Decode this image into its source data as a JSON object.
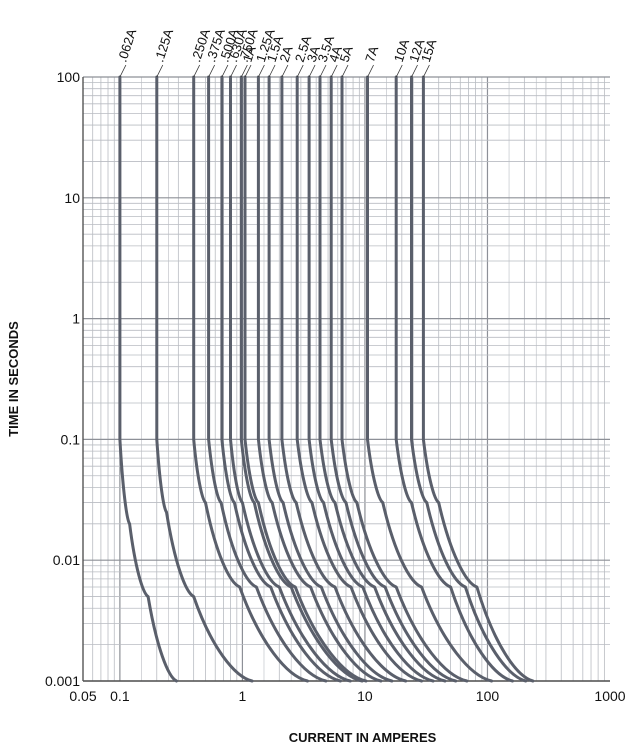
{
  "chart_data": {
    "type": "line",
    "title": "",
    "xlabel": "CURRENT IN AMPERES",
    "ylabel": "TIME IN SECONDS",
    "xscale": "log",
    "yscale": "log",
    "xlim": [
      0.05,
      1000
    ],
    "ylim": [
      0.001,
      100
    ],
    "grid": true,
    "x_tick_labels": [
      "0.05",
      "0.1",
      "1",
      "10",
      "100",
      "1000"
    ],
    "x_tick_values": [
      0.05,
      0.1,
      1,
      10,
      100,
      1000
    ],
    "y_tick_labels": [
      "0.001",
      "0.01",
      "0.1",
      "1",
      "10",
      "100"
    ],
    "y_tick_values": [
      0.001,
      0.01,
      0.1,
      1,
      10,
      100
    ],
    "series_color": "#5a5f6b",
    "series": [
      {
        "name": ".062A",
        "points": [
          [
            0.1,
            100
          ],
          [
            0.1,
            0.1
          ],
          [
            0.12,
            0.02
          ],
          [
            0.17,
            0.005
          ],
          [
            0.29,
            0.001
          ]
        ]
      },
      {
        "name": ".125A",
        "points": [
          [
            0.2,
            100
          ],
          [
            0.2,
            0.1
          ],
          [
            0.24,
            0.025
          ],
          [
            0.4,
            0.005
          ],
          [
            1.2,
            0.001
          ]
        ]
      },
      {
        "name": ".250A",
        "points": [
          [
            0.4,
            100
          ],
          [
            0.4,
            0.1
          ],
          [
            0.5,
            0.03
          ],
          [
            0.95,
            0.006
          ],
          [
            3.4,
            0.001
          ]
        ]
      },
      {
        "name": ".375A",
        "points": [
          [
            0.53,
            100
          ],
          [
            0.53,
            0.1
          ],
          [
            0.67,
            0.03
          ],
          [
            1.3,
            0.006
          ],
          [
            4.8,
            0.001
          ]
        ]
      },
      {
        "name": ".500A",
        "points": [
          [
            0.68,
            100
          ],
          [
            0.68,
            0.1
          ],
          [
            0.86,
            0.03
          ],
          [
            1.7,
            0.006
          ],
          [
            6.3,
            0.001
          ]
        ]
      },
      {
        "name": ".630A",
        "points": [
          [
            0.8,
            100
          ],
          [
            0.8,
            0.1
          ],
          [
            1.0,
            0.03
          ],
          [
            2.0,
            0.006
          ],
          [
            7.6,
            0.001
          ]
        ]
      },
      {
        "name": ".750A",
        "points": [
          [
            0.98,
            100
          ],
          [
            0.98,
            0.1
          ],
          [
            1.25,
            0.03
          ],
          [
            2.5,
            0.006
          ],
          [
            9.5,
            0.001
          ]
        ]
      },
      {
        "name": "1A",
        "points": [
          [
            1.05,
            100
          ],
          [
            1.05,
            0.1
          ],
          [
            1.35,
            0.03
          ],
          [
            2.7,
            0.006
          ],
          [
            10.2,
            0.001
          ]
        ]
      },
      {
        "name": "1.25A",
        "points": [
          [
            1.35,
            100
          ],
          [
            1.35,
            0.1
          ],
          [
            1.75,
            0.03
          ],
          [
            3.6,
            0.006
          ],
          [
            13.5,
            0.001
          ]
        ]
      },
      {
        "name": "1.5A",
        "points": [
          [
            1.65,
            100
          ],
          [
            1.65,
            0.1
          ],
          [
            2.15,
            0.03
          ],
          [
            4.4,
            0.006
          ],
          [
            16.6,
            0.001
          ]
        ]
      },
      {
        "name": "2A",
        "points": [
          [
            2.1,
            100
          ],
          [
            2.1,
            0.1
          ],
          [
            2.75,
            0.03
          ],
          [
            5.7,
            0.006
          ],
          [
            21.5,
            0.001
          ]
        ]
      },
      {
        "name": "2.5A",
        "points": [
          [
            2.8,
            100
          ],
          [
            2.8,
            0.1
          ],
          [
            3.7,
            0.03
          ],
          [
            7.7,
            0.006
          ],
          [
            29,
            0.001
          ]
        ]
      },
      {
        "name": "3A",
        "points": [
          [
            3.5,
            100
          ],
          [
            3.5,
            0.1
          ],
          [
            4.6,
            0.03
          ],
          [
            9.6,
            0.006
          ],
          [
            36,
            0.001
          ]
        ]
      },
      {
        "name": "3.5A",
        "points": [
          [
            4.3,
            100
          ],
          [
            4.3,
            0.1
          ],
          [
            5.7,
            0.03
          ],
          [
            12,
            0.006
          ],
          [
            45,
            0.001
          ]
        ]
      },
      {
        "name": "4A",
        "points": [
          [
            5.3,
            100
          ],
          [
            5.3,
            0.1
          ],
          [
            7,
            0.03
          ],
          [
            14.6,
            0.006
          ],
          [
            55,
            0.001
          ]
        ]
      },
      {
        "name": "5A",
        "points": [
          [
            6.5,
            100
          ],
          [
            6.5,
            0.1
          ],
          [
            8.6,
            0.03
          ],
          [
            18,
            0.006
          ],
          [
            68,
            0.001
          ]
        ]
      },
      {
        "name": "7A",
        "points": [
          [
            10.5,
            100
          ],
          [
            10.5,
            0.1
          ],
          [
            14,
            0.03
          ],
          [
            29,
            0.006
          ],
          [
            108,
            0.001
          ]
        ]
      },
      {
        "name": "10A",
        "points": [
          [
            18,
            100
          ],
          [
            18,
            0.1
          ],
          [
            24,
            0.03
          ],
          [
            50,
            0.006
          ],
          [
            160,
            0.001
          ]
        ]
      },
      {
        "name": "12A",
        "points": [
          [
            24,
            100
          ],
          [
            24,
            0.1
          ],
          [
            32,
            0.03
          ],
          [
            66,
            0.006
          ],
          [
            205,
            0.001
          ]
        ]
      },
      {
        "name": "15A",
        "points": [
          [
            30,
            100
          ],
          [
            30,
            0.1
          ],
          [
            40,
            0.03
          ],
          [
            82,
            0.006
          ],
          [
            235,
            0.001
          ]
        ]
      }
    ]
  }
}
